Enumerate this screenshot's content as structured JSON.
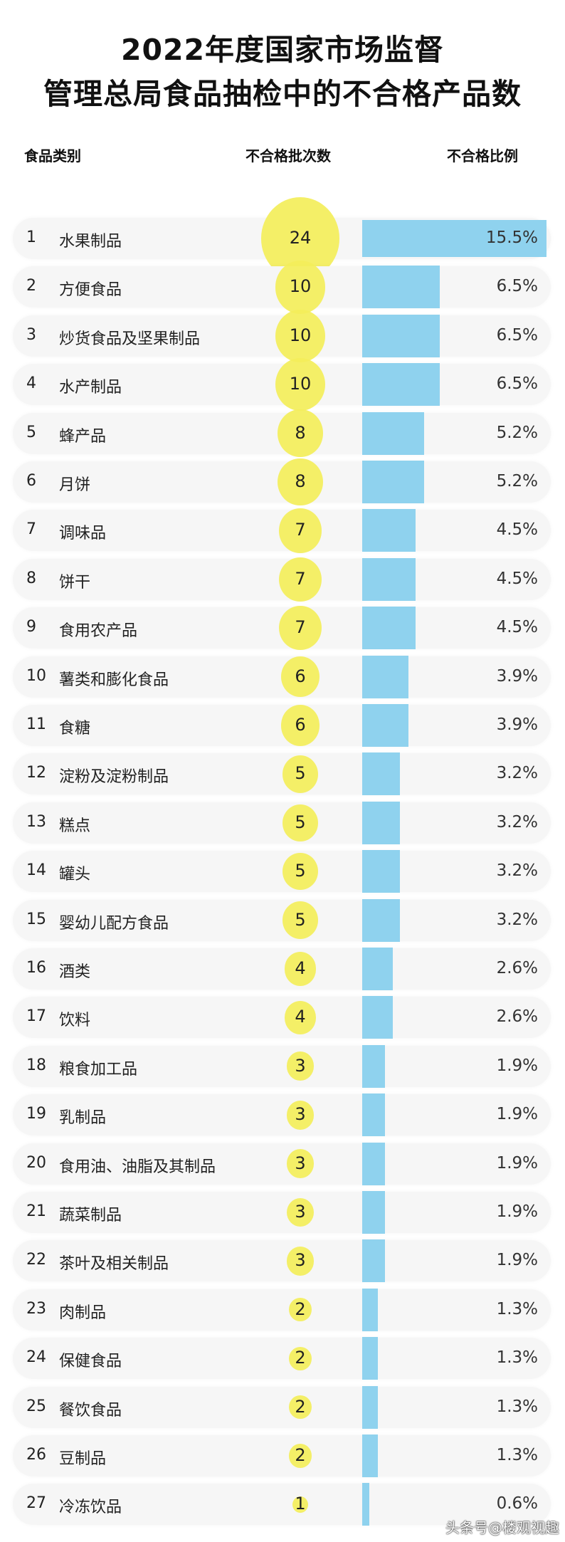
{
  "title": {
    "line1": "2022年度国家市场监督",
    "line2": "管理总局食品抽检中的不合格产品数"
  },
  "chart_data": {
    "type": "table",
    "title": "2022年度国家市场监督管理总局食品抽检中的不合格产品数",
    "columns": [
      "食品类别",
      "不合格批次数",
      "不合格比例"
    ],
    "rows": [
      {
        "rank": "1",
        "name": "水果制品",
        "count": 24,
        "pct": 15.5,
        "pct_label": "15.5%"
      },
      {
        "rank": "2",
        "name": "方便食品",
        "count": 10,
        "pct": 6.5,
        "pct_label": "6.5%"
      },
      {
        "rank": "3",
        "name": "炒货食品及坚果制品",
        "count": 10,
        "pct": 6.5,
        "pct_label": "6.5%"
      },
      {
        "rank": "4",
        "name": "水产制品",
        "count": 10,
        "pct": 6.5,
        "pct_label": "6.5%"
      },
      {
        "rank": "5",
        "name": "蜂产品",
        "count": 8,
        "pct": 5.2,
        "pct_label": "5.2%"
      },
      {
        "rank": "6",
        "name": "月饼",
        "count": 8,
        "pct": 5.2,
        "pct_label": "5.2%"
      },
      {
        "rank": "7",
        "name": "调味品",
        "count": 7,
        "pct": 4.5,
        "pct_label": "4.5%"
      },
      {
        "rank": "8",
        "name": "饼干",
        "count": 7,
        "pct": 4.5,
        "pct_label": "4.5%"
      },
      {
        "rank": "9",
        "name": "食用农产品",
        "count": 7,
        "pct": 4.5,
        "pct_label": "4.5%"
      },
      {
        "rank": "10",
        "name": "薯类和膨化食品",
        "count": 6,
        "pct": 3.9,
        "pct_label": "3.9%"
      },
      {
        "rank": "11",
        "name": "食糖",
        "count": 6,
        "pct": 3.9,
        "pct_label": "3.9%"
      },
      {
        "rank": "12",
        "name": "淀粉及淀粉制品",
        "count": 5,
        "pct": 3.2,
        "pct_label": "3.2%"
      },
      {
        "rank": "13",
        "name": "糕点",
        "count": 5,
        "pct": 3.2,
        "pct_label": "3.2%"
      },
      {
        "rank": "14",
        "name": "罐头",
        "count": 5,
        "pct": 3.2,
        "pct_label": "3.2%"
      },
      {
        "rank": "15",
        "name": "婴幼儿配方食品",
        "count": 5,
        "pct": 3.2,
        "pct_label": "3.2%"
      },
      {
        "rank": "16",
        "name": "酒类",
        "count": 4,
        "pct": 2.6,
        "pct_label": "2.6%"
      },
      {
        "rank": "17",
        "name": "饮料",
        "count": 4,
        "pct": 2.6,
        "pct_label": "2.6%"
      },
      {
        "rank": "18",
        "name": "粮食加工品",
        "count": 3,
        "pct": 1.9,
        "pct_label": "1.9%"
      },
      {
        "rank": "19",
        "name": "乳制品",
        "count": 3,
        "pct": 1.9,
        "pct_label": "1.9%"
      },
      {
        "rank": "20",
        "name": "食用油、油脂及其制品",
        "count": 3,
        "pct": 1.9,
        "pct_label": "1.9%"
      },
      {
        "rank": "21",
        "name": "蔬菜制品",
        "count": 3,
        "pct": 1.9,
        "pct_label": "1.9%"
      },
      {
        "rank": "22",
        "name": "茶叶及相关制品",
        "count": 3,
        "pct": 1.9,
        "pct_label": "1.9%"
      },
      {
        "rank": "23",
        "name": "肉制品",
        "count": 2,
        "pct": 1.3,
        "pct_label": "1.3%"
      },
      {
        "rank": "24",
        "name": "保健食品",
        "count": 2,
        "pct": 1.3,
        "pct_label": "1.3%"
      },
      {
        "rank": "25",
        "name": "餐饮食品",
        "count": 2,
        "pct": 1.3,
        "pct_label": "1.3%"
      },
      {
        "rank": "26",
        "name": "豆制品",
        "count": 2,
        "pct": 1.3,
        "pct_label": "1.3%"
      },
      {
        "rank": "27",
        "name": "冷冻饮品",
        "count": 1,
        "pct": 0.6,
        "pct_label": "0.6%"
      }
    ],
    "colors": {
      "bubble": "#f3ee5a",
      "bar": "#8fd2ee",
      "row_bg": "#f6f6f6"
    }
  },
  "watermark": "头条号@楼观视趣"
}
